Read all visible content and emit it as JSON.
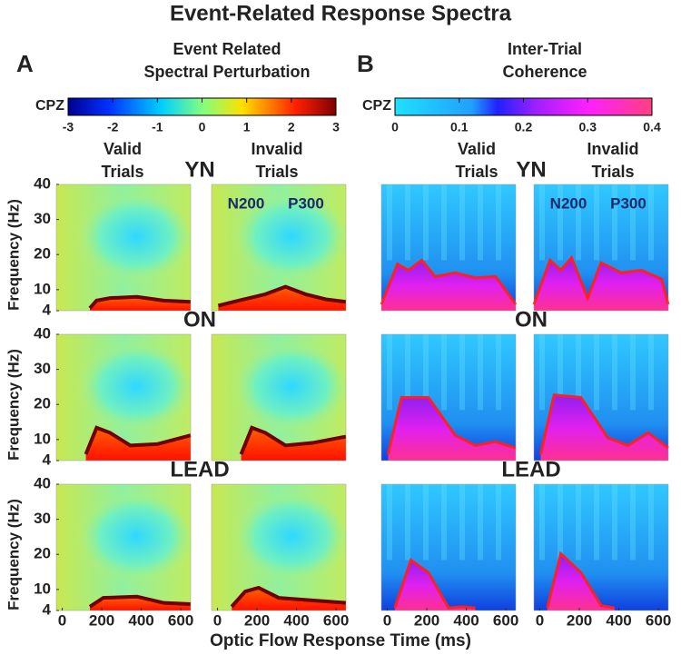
{
  "title": "Event-Related Response Spectra",
  "panels": [
    {
      "letter": "A",
      "heading": [
        "Event Related",
        "Spectral Perturbation"
      ],
      "colorbar": {
        "label": "CPZ",
        "lim": [
          -3,
          3
        ],
        "ticks": [
          -3,
          -2,
          -1,
          0,
          1,
          2,
          3
        ]
      },
      "columns": [
        [
          "Valid",
          "Trials"
        ],
        [
          "Invalid",
          "Trials"
        ]
      ]
    },
    {
      "letter": "B",
      "heading": [
        "Inter-Trial",
        "Coherence"
      ],
      "colorbar": {
        "label": "CPZ",
        "lim": [
          0,
          0.4
        ],
        "ticks": [
          0,
          0.1,
          0.2,
          0.3,
          0.4
        ]
      },
      "columns": [
        [
          "Valid",
          "Trials"
        ],
        [
          "Invalid",
          "Trials"
        ]
      ]
    }
  ],
  "rows": [
    "YN",
    "ON",
    "LEAD"
  ],
  "annotations": [
    "N200",
    "P300"
  ],
  "y_axis": {
    "label": "Frequency (Hz)",
    "lim": [
      4,
      40
    ],
    "ticks": [
      4,
      10,
      20,
      30,
      40
    ]
  },
  "x_axis": {
    "label": "Optic Flow Response Time (ms)",
    "lim": [
      -30,
      650
    ],
    "ticks": [
      0,
      200,
      400,
      600
    ]
  }
}
